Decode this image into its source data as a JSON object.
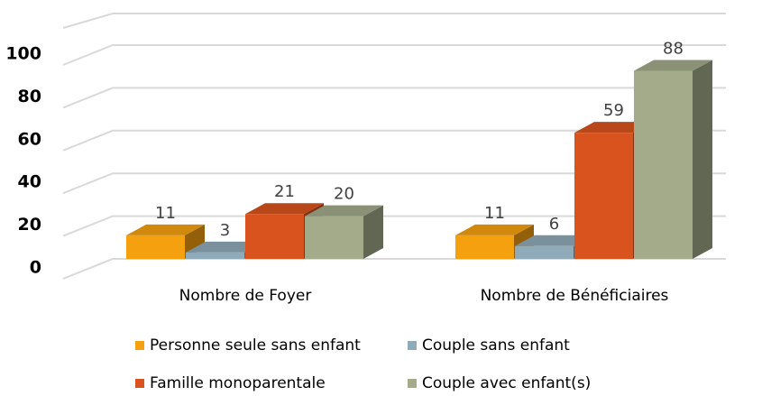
{
  "chart_data": {
    "type": "bar3d",
    "categories": [
      "Nombre de Foyer",
      "Nombre de Bénéficiaires"
    ],
    "series": [
      {
        "name": "Personne seule sans enfant",
        "color": "#f5a00f",
        "values": [
          11,
          11
        ]
      },
      {
        "name": "Couple sans enfant",
        "color": "#8faab9",
        "values": [
          3,
          6
        ]
      },
      {
        "name": "Famille monoparentale",
        "color": "#d9531e",
        "values": [
          21,
          59
        ]
      },
      {
        "name": "Couple avec enfant(s)",
        "color": "#a4ab8b",
        "values": [
          20,
          88
        ]
      }
    ],
    "ylim": [
      0,
      120
    ],
    "yticks": [
      0,
      20,
      40,
      60,
      80,
      100
    ],
    "grid": true
  }
}
